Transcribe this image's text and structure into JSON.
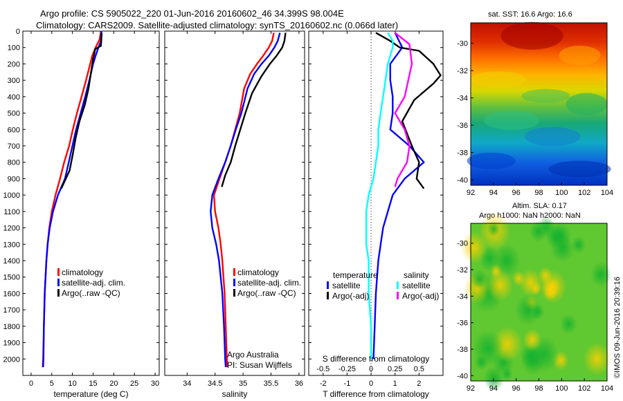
{
  "titles": {
    "line1": "Argo profile: CS 5905022_220 01-Jun-2016 20160602_46 34.399S 98.004E",
    "line2": "Climatology: CARS2009. Satellite-adjusted climatology: synTS_20160602.nc (0.066d later)"
  },
  "stamp": "©IMOS 09-Jun-2016 20:39:16",
  "chart_data": [
    {
      "type": "line",
      "xlabel": "temperature (deg C)",
      "xlim": [
        -2,
        31
      ],
      "ylim": [
        2100,
        0
      ],
      "xticks": [
        0,
        5,
        10,
        15,
        20,
        25,
        30
      ],
      "yticks": [
        0,
        100,
        200,
        300,
        400,
        500,
        600,
        700,
        800,
        900,
        1000,
        1100,
        1200,
        1300,
        1400,
        1500,
        1600,
        1700,
        1800,
        1900,
        2000
      ],
      "legend": [
        "climatology",
        "satellite-adj. clim.",
        "Argo(..raw -QC)"
      ],
      "series": [
        {
          "name": "climatology",
          "color": "#ff0000",
          "points": [
            [
              16.9,
              0
            ],
            [
              16.6,
              50
            ],
            [
              15.6,
              100
            ],
            [
              14.8,
              150
            ],
            [
              14.3,
              200
            ],
            [
              13.3,
              300
            ],
            [
              12.2,
              400
            ],
            [
              11.1,
              500
            ],
            [
              10.1,
              600
            ],
            [
              9.2,
              700
            ],
            [
              8.0,
              800
            ],
            [
              7.0,
              900
            ],
            [
              5.9,
              1000
            ],
            [
              5.0,
              1100
            ],
            [
              4.4,
              1200
            ],
            [
              4.0,
              1300
            ],
            [
              3.7,
              1400
            ],
            [
              3.5,
              1500
            ],
            [
              3.3,
              1600
            ],
            [
              3.1,
              1800
            ],
            [
              2.9,
              2000
            ],
            [
              2.8,
              2050
            ]
          ]
        },
        {
          "name": "satellite-adj. clim.",
          "color": "#0000ff",
          "points": [
            [
              17.0,
              0
            ],
            [
              16.9,
              60
            ],
            [
              16.3,
              100
            ],
            [
              15.6,
              150
            ],
            [
              15.0,
              200
            ],
            [
              14.1,
              300
            ],
            [
              13.1,
              400
            ],
            [
              12.0,
              500
            ],
            [
              10.9,
              600
            ],
            [
              10.0,
              700
            ],
            [
              9.1,
              800
            ],
            [
              8.2,
              900
            ],
            [
              6.5,
              1000
            ],
            [
              5.3,
              1100
            ],
            [
              4.5,
              1200
            ],
            [
              4.0,
              1300
            ],
            [
              3.7,
              1400
            ],
            [
              3.5,
              1500
            ],
            [
              3.3,
              1600
            ],
            [
              3.1,
              1800
            ],
            [
              3.0,
              2000
            ],
            [
              2.9,
              2050
            ]
          ]
        },
        {
          "name": "Argo(..raw -QC)",
          "color": "#000000",
          "points": [
            [
              17.1,
              10
            ],
            [
              17.0,
              50
            ],
            [
              16.9,
              90
            ],
            [
              15.5,
              110
            ],
            [
              15.0,
              170
            ],
            [
              14.5,
              250
            ],
            [
              13.9,
              350
            ],
            [
              13.0,
              450
            ],
            [
              11.7,
              550
            ],
            [
              10.8,
              650
            ],
            [
              10.1,
              750
            ],
            [
              9.3,
              850
            ],
            [
              7.3,
              960
            ]
          ]
        }
      ]
    },
    {
      "type": "line",
      "xlabel": "salinity",
      "xlim": [
        33.6,
        36.1
      ],
      "ylim": [
        2100,
        0
      ],
      "xticks": [
        34,
        34.5,
        35,
        35.5,
        36
      ],
      "legend": [
        "climatology",
        "satellite-adj. clim.",
        "Argo(..raw -QC)"
      ],
      "annotation": [
        "Argo Australia",
        "PI: Susan Wijffels"
      ],
      "series": [
        {
          "name": "climatology",
          "color": "#ff0000",
          "points": [
            [
              35.55,
              10
            ],
            [
              35.52,
              60
            ],
            [
              35.46,
              100
            ],
            [
              35.36,
              150
            ],
            [
              35.25,
              200
            ],
            [
              35.13,
              260
            ],
            [
              35.02,
              350
            ],
            [
              34.94,
              500
            ],
            [
              34.86,
              600
            ],
            [
              34.78,
              700
            ],
            [
              34.68,
              800
            ],
            [
              34.58,
              900
            ],
            [
              34.48,
              1000
            ],
            [
              34.5,
              1100
            ],
            [
              34.56,
              1200
            ],
            [
              34.6,
              1300
            ],
            [
              34.63,
              1400
            ],
            [
              34.65,
              1500
            ],
            [
              34.67,
              1600
            ],
            [
              34.69,
              1800
            ],
            [
              34.71,
              2000
            ],
            [
              34.72,
              2050
            ]
          ]
        },
        {
          "name": "satellite-adj. clim.",
          "color": "#0000ff",
          "points": [
            [
              35.66,
              10
            ],
            [
              35.62,
              60
            ],
            [
              35.56,
              100
            ],
            [
              35.46,
              150
            ],
            [
              35.33,
              200
            ],
            [
              35.2,
              260
            ],
            [
              35.08,
              350
            ],
            [
              34.97,
              500
            ],
            [
              34.87,
              600
            ],
            [
              34.78,
              700
            ],
            [
              34.68,
              800
            ],
            [
              34.56,
              900
            ],
            [
              34.45,
              1000
            ],
            [
              34.42,
              1100
            ],
            [
              34.45,
              1200
            ],
            [
              34.52,
              1300
            ],
            [
              34.57,
              1400
            ],
            [
              34.6,
              1500
            ],
            [
              34.63,
              1600
            ],
            [
              34.66,
              1800
            ],
            [
              34.68,
              2000
            ],
            [
              34.69,
              2050
            ]
          ]
        },
        {
          "name": "Argo(..raw -QC)",
          "color": "#000000",
          "points": [
            [
              35.76,
              10
            ],
            [
              35.74,
              60
            ],
            [
              35.7,
              100
            ],
            [
              35.6,
              150
            ],
            [
              35.48,
              200
            ],
            [
              35.32,
              280
            ],
            [
              35.16,
              380
            ],
            [
              35.04,
              500
            ],
            [
              34.95,
              600
            ],
            [
              34.86,
              700
            ],
            [
              34.78,
              800
            ],
            [
              34.68,
              880
            ],
            [
              34.62,
              950
            ]
          ]
        }
      ]
    },
    {
      "type": "line",
      "xlabel": "T difference from climatology",
      "xlabel_top": "S difference from climatology",
      "xlim": [
        -2.6,
        3.0
      ],
      "ylim": [
        2100,
        0
      ],
      "xticks": [
        -2,
        -1,
        0,
        1,
        2
      ],
      "xticks_top": [
        "-0.5",
        "-0.25",
        "0",
        "0.25",
        "0.5"
      ],
      "legend_groups": [
        {
          "title": "temperature",
          "items": [
            "satellite",
            "Argo(-adj)"
          ]
        },
        {
          "title": "salinity",
          "items": [
            "satellite",
            "Argo(-adj)"
          ]
        }
      ],
      "series": [
        {
          "name": "temperature satellite",
          "color": "#0000ff",
          "points": [
            [
              1.0,
              10
            ],
            [
              1.3,
              100
            ],
            [
              0.8,
              200
            ],
            [
              0.8,
              300
            ],
            [
              0.9,
              400
            ],
            [
              0.9,
              500
            ],
            [
              0.8,
              600
            ],
            [
              1.6,
              700
            ],
            [
              2.2,
              800
            ],
            [
              1.4,
              900
            ],
            [
              0.9,
              1000
            ],
            [
              0.7,
              1100
            ],
            [
              0.5,
              1200
            ],
            [
              0.4,
              1300
            ],
            [
              0.3,
              1400
            ],
            [
              0.2,
              1600
            ],
            [
              0.15,
              1800
            ],
            [
              0.1,
              2000
            ]
          ]
        },
        {
          "name": "temperature Argo(-adj)",
          "color": "#000000",
          "points": [
            [
              0.2,
              10
            ],
            [
              0.8,
              60
            ],
            [
              1.2,
              100
            ],
            [
              2.0,
              120
            ],
            [
              2.6,
              200
            ],
            [
              2.9,
              270
            ],
            [
              2.6,
              320
            ],
            [
              1.8,
              420
            ],
            [
              1.3,
              550
            ],
            [
              1.7,
              700
            ],
            [
              2.0,
              800
            ],
            [
              1.9,
              900
            ],
            [
              2.2,
              960
            ]
          ]
        },
        {
          "name": "salinity satellite",
          "color": "#00ffff",
          "points": [
            [
              0.7,
              10
            ],
            [
              0.9,
              60
            ],
            [
              0.9,
              100
            ],
            [
              0.7,
              200
            ],
            [
              0.6,
              300
            ],
            [
              0.5,
              400
            ],
            [
              0.4,
              500
            ],
            [
              0.3,
              600
            ],
            [
              0.3,
              700
            ],
            [
              0.2,
              800
            ],
            [
              0.1,
              900
            ],
            [
              -0.1,
              1000
            ],
            [
              -0.2,
              1100
            ],
            [
              -0.2,
              1200
            ],
            [
              -0.2,
              1300
            ],
            [
              -0.1,
              1400
            ],
            [
              -0.1,
              1600
            ],
            [
              0.0,
              1800
            ],
            [
              0.0,
              2000
            ]
          ]
        },
        {
          "name": "salinity Argo(-adj)",
          "color": "#ff00ff",
          "points": [
            [
              1.0,
              10
            ],
            [
              1.6,
              80
            ],
            [
              1.7,
              200
            ],
            [
              1.4,
              400
            ],
            [
              1.0,
              500
            ],
            [
              1.4,
              600
            ],
            [
              1.6,
              700
            ],
            [
              1.5,
              800
            ],
            [
              1.1,
              900
            ],
            [
              1.0,
              950
            ]
          ]
        }
      ]
    },
    {
      "type": "heatmap",
      "title": "sat. SST: 16.6 Argo: 16.6",
      "xticks": [
        92,
        94,
        96,
        98,
        100,
        102,
        104
      ],
      "yticks": [
        -30,
        -32,
        -34,
        -36,
        -38,
        -40
      ],
      "xlim": [
        92,
        104
      ],
      "ylim": [
        -40.4,
        -28.5
      ]
    },
    {
      "type": "heatmap",
      "title_lines": [
        "Altim. SLA: 0.17",
        "Argo h1000: NaN h2000: NaN"
      ],
      "xticks": [
        92,
        94,
        96,
        98,
        100,
        102,
        104
      ],
      "yticks": [
        -30,
        -32,
        -34,
        -36,
        -38,
        -40
      ],
      "xlim": [
        92,
        104
      ],
      "ylim": [
        -40.4,
        -28.5
      ]
    }
  ]
}
